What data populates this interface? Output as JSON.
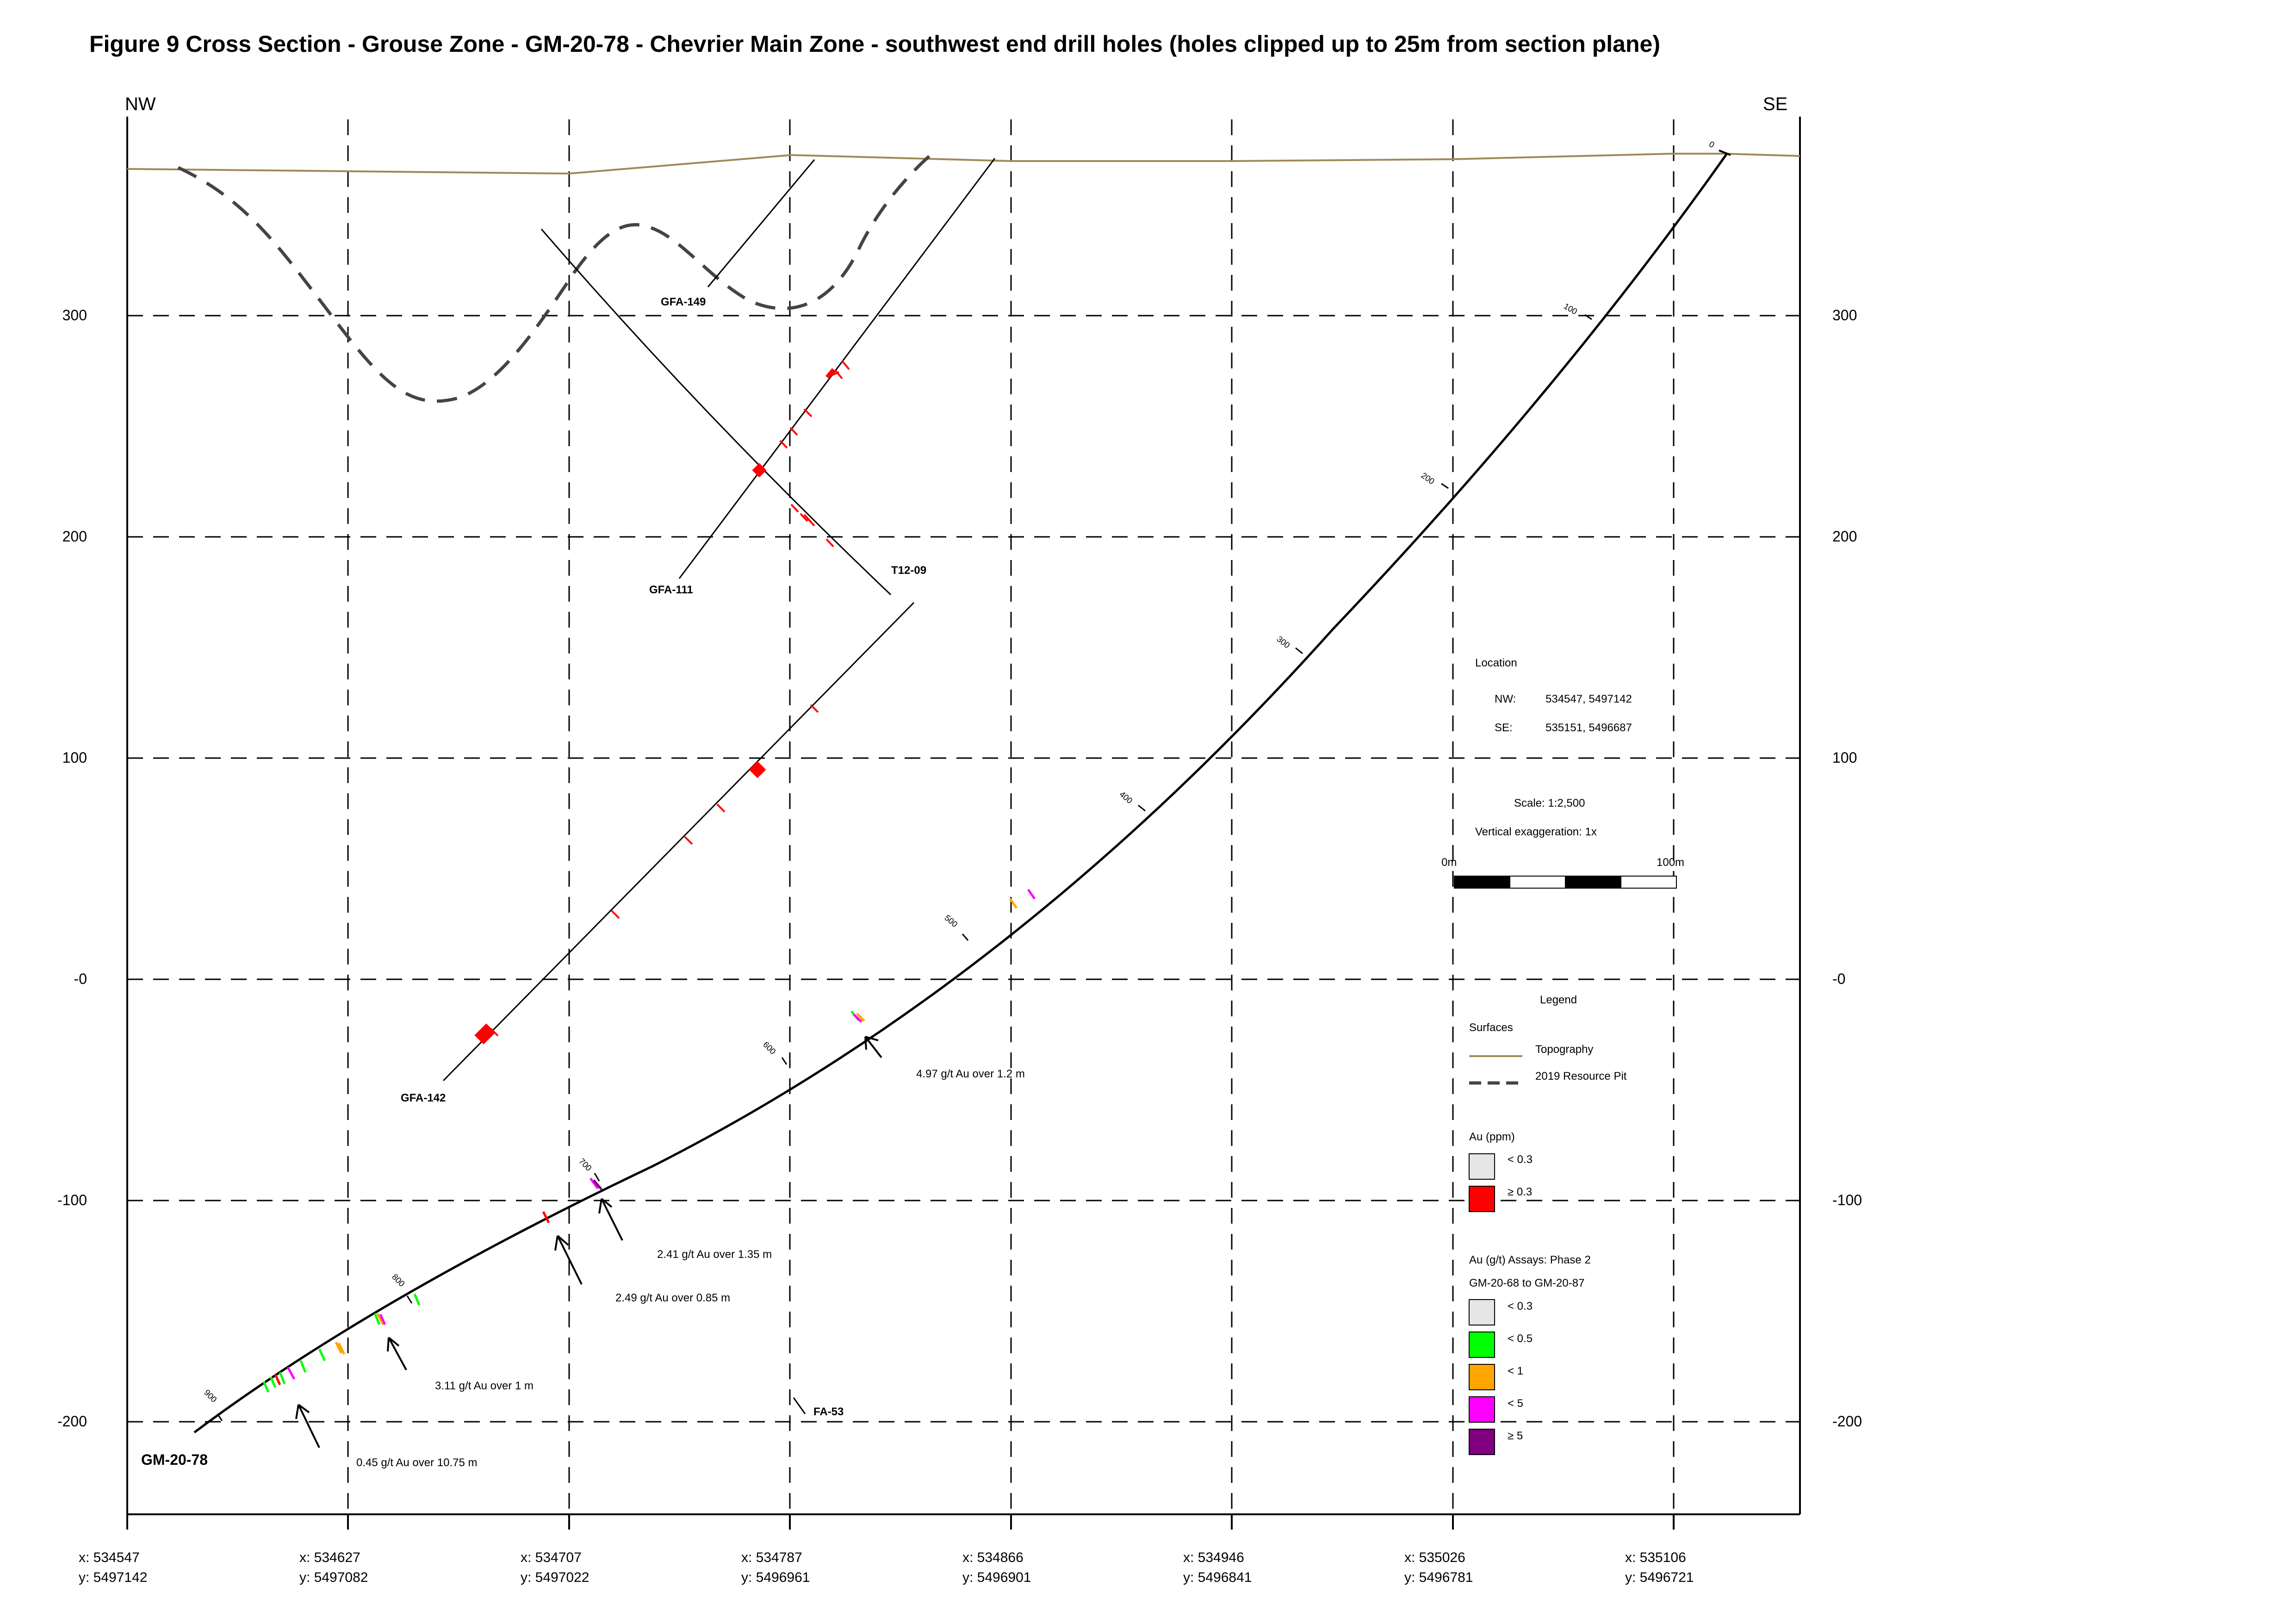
{
  "title": "Figure 9 Cross Section - Grouse Zone - GM-20-78 - Chevrier Main Zone - southwest end drill holes (holes clipped up to 25m from section plane)",
  "directions": {
    "left": "NW",
    "right": "SE"
  },
  "elevation_ticks": [
    "300",
    "200",
    "100",
    "-0",
    "-100",
    "-200"
  ],
  "easting_ticks": [
    {
      "x": "x: 534547",
      "y": "y: 5497142"
    },
    {
      "x": "x: 534627",
      "y": "y: 5497082"
    },
    {
      "x": "x: 534707",
      "y": "y: 5497022"
    },
    {
      "x": "x: 534787",
      "y": "y: 5496961"
    },
    {
      "x": "x: 534866",
      "y": "y: 5496901"
    },
    {
      "x": "x: 534946",
      "y": "y: 5496841"
    },
    {
      "x": "x: 535026",
      "y": "y: 5496781"
    },
    {
      "x": "x: 535106",
      "y": "y: 5496721"
    }
  ],
  "holes": {
    "gfa149": "GFA-149",
    "gfa111": "GFA-111",
    "t1209": "T12-09",
    "gfa142": "GFA-142",
    "gm2078": "GM-20-78",
    "fa53": "FA-53"
  },
  "depth_marks": [
    "0",
    "100",
    "200",
    "300",
    "400",
    "500",
    "600",
    "700",
    "800",
    "900"
  ],
  "annotations": [
    "4.97 g/t Au over 1.2 m",
    "2.41 g/t Au over 1.35 m",
    "2.49 g/t Au over 0.85 m",
    "3.11 g/t Au over 1 m",
    "0.45 g/t Au over 10.75 m"
  ],
  "location": {
    "heading": "Location",
    "nw_label": "NW:",
    "nw_value": "534547, 5497142",
    "se_label": "SE:",
    "se_value": "535151, 5496687"
  },
  "scale": {
    "text": "Scale: 1:2,500",
    "exaggeration": "Vertical exaggeration: 1x",
    "start": "0m",
    "end": "100m"
  },
  "legend": {
    "heading": "Legend",
    "surfaces_heading": "Surfaces",
    "topography": "Topography",
    "pit": "2019 Resource Pit",
    "au_ppm_heading": "Au (ppm)",
    "au_ppm_items": [
      {
        "label": "< 0.3",
        "color": "#e6e6e6"
      },
      {
        "label": "≥ 0.3",
        "color": "#ff0000"
      }
    ],
    "assay_heading": "Au (g/t) Assays: Phase 2",
    "assay_subheading": "GM-20-68 to GM-20-87",
    "assay_items": [
      {
        "label": "< 0.3",
        "color": "#e6e6e6"
      },
      {
        "label": "< 0.5",
        "color": "#00ff00"
      },
      {
        "label": "< 1",
        "color": "#ffa500"
      },
      {
        "label": "< 5",
        "color": "#ff00ff"
      },
      {
        "label": "≥ 5",
        "color": "#800080"
      }
    ]
  },
  "colors": {
    "topography": "#a0895a",
    "grid": "#000000",
    "red": "#ff0000",
    "green": "#00ff00",
    "orange": "#ffa500",
    "magenta": "#ff00ff",
    "purple": "#800080"
  }
}
